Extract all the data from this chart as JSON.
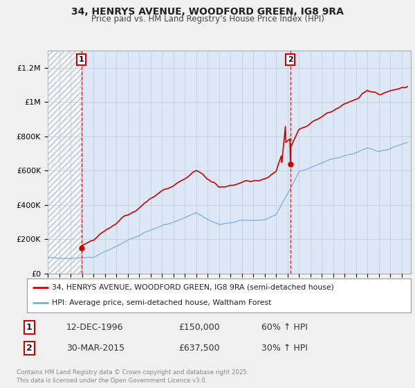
{
  "title": "34, HENRYS AVENUE, WOODFORD GREEN, IG8 9RA",
  "subtitle": "Price paid vs. HM Land Registry's House Price Index (HPI)",
  "ylim": [
    0,
    1300000
  ],
  "yticks": [
    0,
    200000,
    400000,
    600000,
    800000,
    1000000,
    1200000
  ],
  "ytick_labels": [
    "£0",
    "£200K",
    "£400K",
    "£600K",
    "£800K",
    "£1M",
    "£1.2M"
  ],
  "line1_color": "#cc0000",
  "line2_color": "#7dadd4",
  "vline_color": "#cc0000",
  "sale1_year": 1996.95,
  "sale1_price": 150000,
  "sale2_year": 2015.24,
  "sale2_price": 637500,
  "legend_line1": "34, HENRYS AVENUE, WOODFORD GREEN, IG8 9RA (semi-detached house)",
  "legend_line2": "HPI: Average price, semi-detached house, Waltham Forest",
  "transaction1_num": "1",
  "transaction1_date": "12-DEC-1996",
  "transaction1_price": "£150,000",
  "transaction1_info": "60% ↑ HPI",
  "transaction2_num": "2",
  "transaction2_date": "30-MAR-2015",
  "transaction2_price": "£637,500",
  "transaction2_info": "30% ↑ HPI",
  "footer": "Contains HM Land Registry data © Crown copyright and database right 2025.\nThis data is licensed under the Open Government Licence v3.0.",
  "background_color": "#f0f0f0",
  "plot_background": "#dce8f5",
  "hatch_color": "#aaaaaa"
}
